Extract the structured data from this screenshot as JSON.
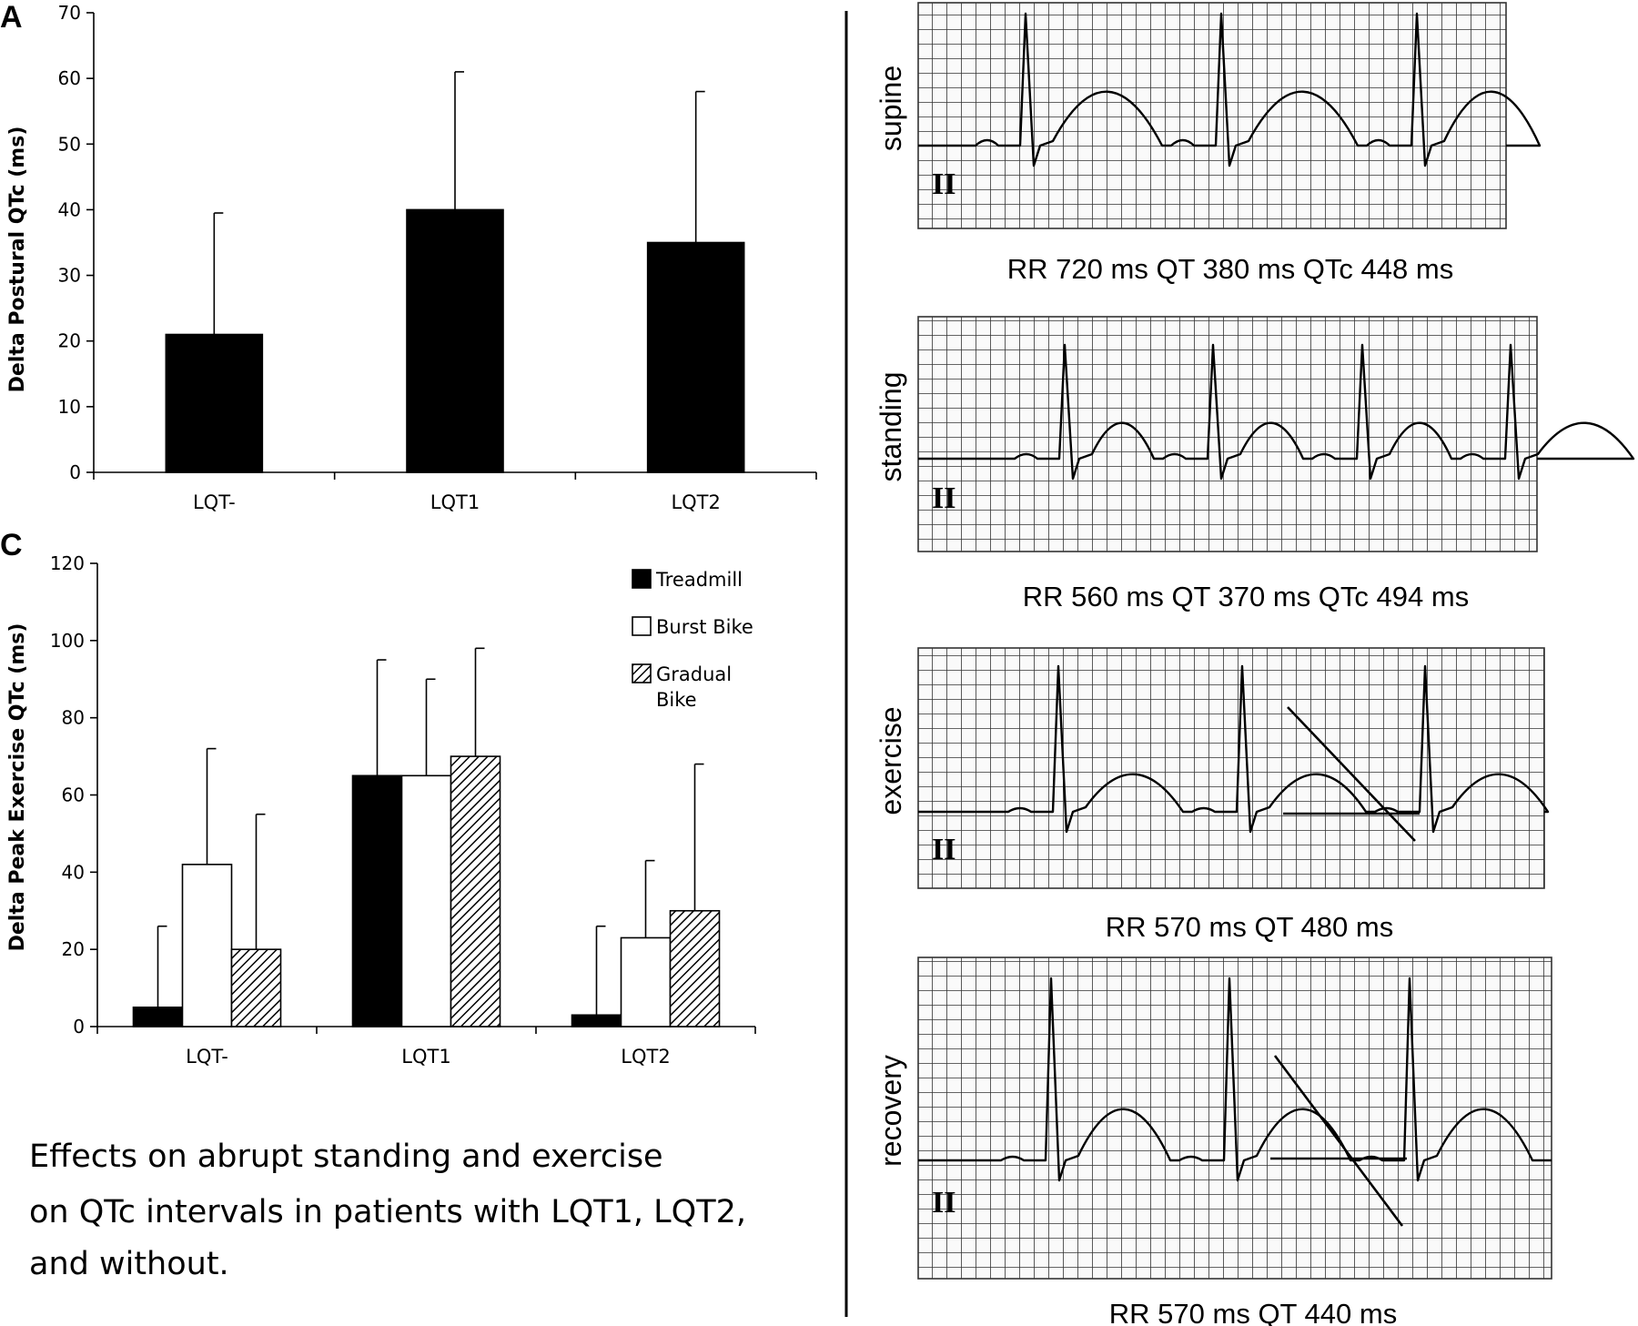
{
  "caption": {
    "lines": [
      "Effects on abrupt standing and exercise",
      "on QTc intervals in patients with LQT1, LQT2,",
      "and without."
    ]
  },
  "chart_data": [
    {
      "panel": "A",
      "type": "bar",
      "ylabel": "Delta Postural QTc (ms)",
      "ylim": [
        0,
        70
      ],
      "yticks": [
        0,
        10,
        20,
        30,
        40,
        50,
        60,
        70
      ],
      "categories": [
        "LQT-",
        "LQT1",
        "LQT2"
      ],
      "values": [
        21,
        40,
        35
      ],
      "error_upper": [
        39.5,
        61,
        58
      ],
      "color": "#000000",
      "grid": false
    },
    {
      "panel": "C",
      "type": "bar",
      "ylabel": "Delta Peak Exercise QTc (ms)",
      "ylim": [
        0,
        120
      ],
      "yticks": [
        0,
        20,
        40,
        60,
        80,
        100,
        120
      ],
      "categories": [
        "LQT-",
        "LQT1",
        "LQT2"
      ],
      "legend_position": "top-right",
      "grid": false,
      "series": [
        {
          "name": "Treadmill",
          "style": "solid-black",
          "values": [
            5,
            65,
            3
          ],
          "error_upper": [
            26,
            95,
            26
          ]
        },
        {
          "name": "Burst Bike",
          "style": "white",
          "values": [
            42,
            65,
            23
          ],
          "error_upper": [
            72,
            90,
            43
          ]
        },
        {
          "name": "Gradual Bike",
          "name_lines": [
            "Gradual",
            "Bike"
          ],
          "style": "hatched",
          "values": [
            20,
            70,
            30
          ],
          "error_upper": [
            55,
            98,
            68
          ]
        }
      ]
    }
  ],
  "ecg_strips": [
    {
      "state": "supine",
      "lead": "II",
      "caption": "RR 720 ms QT 380 ms QTc 448 ms"
    },
    {
      "state": "standing",
      "lead": "II",
      "caption": "RR 560 ms QT 370 ms QTc 494 ms"
    },
    {
      "state": "exercise",
      "lead": "II",
      "caption": "RR 570 ms QT 480 ms"
    },
    {
      "state": "recovery",
      "lead": "II",
      "caption": "RR 570 ms QT 440 ms"
    }
  ]
}
